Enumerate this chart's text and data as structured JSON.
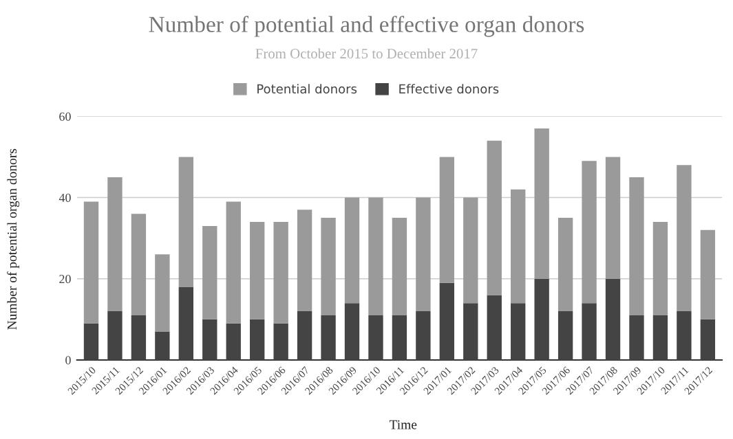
{
  "chart_data": {
    "type": "bar",
    "title": "Number of potential and effective organ donors",
    "subtitle": "From October 2015 to December 2017",
    "xlabel": "Time",
    "ylabel": "Number of potential organ donors",
    "categories": [
      "2015/10",
      "2015/11",
      "2015/12",
      "2016/01",
      "2016/02",
      "2016/03",
      "2016/04",
      "2016/05",
      "2016/06",
      "2016/07",
      "2016/08",
      "2016/09",
      "2016/10",
      "2016/11",
      "2016/12",
      "2017/01",
      "2017/02",
      "2017/03",
      "2017/04",
      "2017/05",
      "2017/06",
      "2017/07",
      "2017/08",
      "2017/09",
      "2017/10",
      "2017/11",
      "2017/12"
    ],
    "stacked": true,
    "series": [
      {
        "name": "Effective donors",
        "color": "#444444",
        "values": [
          9,
          12,
          11,
          7,
          18,
          10,
          9,
          10,
          9,
          12,
          11,
          14,
          11,
          11,
          12,
          19,
          14,
          16,
          14,
          20,
          12,
          14,
          20,
          11,
          11,
          12,
          10
        ]
      },
      {
        "name": "Potential donors",
        "color": "#9a9a9a",
        "values": [
          30,
          33,
          25,
          19,
          32,
          23,
          30,
          24,
          25,
          25,
          24,
          26,
          29,
          24,
          28,
          31,
          26,
          38,
          28,
          37,
          23,
          35,
          30,
          34,
          23,
          36,
          22
        ]
      }
    ],
    "ylim": [
      0,
      60
    ],
    "yticks": [
      0,
      20,
      40,
      60
    ],
    "grid": "y",
    "legend": "top"
  }
}
